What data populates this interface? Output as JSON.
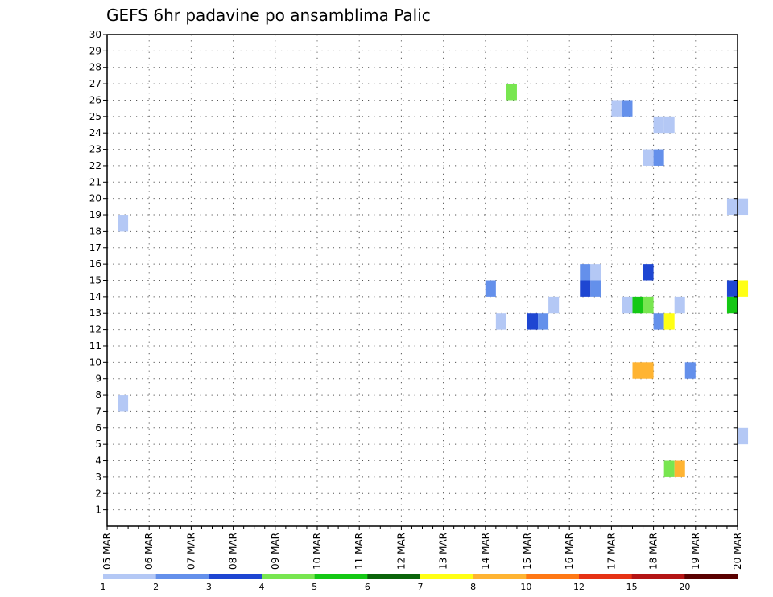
{
  "chart_data": {
    "type": "heatmap",
    "title": "GEFS 6hr padavine po ansamblima Palic",
    "xlabel": "",
    "ylabel": "",
    "x_tick_labels": [
      "05 MAR",
      "06 MAR",
      "07 MAR",
      "08 MAR",
      "09 MAR",
      "10 MAR",
      "11 MAR",
      "12 MAR",
      "13 MAR",
      "14 MAR",
      "15 MAR",
      "16 MAR",
      "17 MAR",
      "18 MAR",
      "19 MAR",
      "20 MAR"
    ],
    "xlim_days": [
      0,
      15
    ],
    "y_tick_labels": [
      1,
      2,
      3,
      4,
      5,
      6,
      7,
      8,
      9,
      10,
      11,
      12,
      13,
      14,
      15,
      16,
      17,
      18,
      19,
      20,
      21,
      22,
      23,
      24,
      25,
      26,
      27,
      28,
      29,
      30
    ],
    "ylim": [
      0,
      30
    ],
    "grid": true,
    "colorbar": {
      "placement": "bottom",
      "levels": [
        1,
        2,
        3,
        4,
        5,
        6,
        7,
        8,
        10,
        12,
        15,
        20
      ],
      "tick_labels": [
        "1",
        "2",
        "3",
        "4",
        "5",
        "6",
        "7",
        "8",
        "10",
        "12",
        "15",
        "20"
      ],
      "colors": [
        "#b4c8f5",
        "#6490eb",
        "#1e46d2",
        "#78e650",
        "#14c814",
        "#0a640a",
        "#ffff14",
        "#ffb432",
        "#ff7814",
        "#e63214",
        "#b41414",
        "#5a0000"
      ]
    },
    "cells": [
      {
        "t": 0.25,
        "m": 19,
        "v": 1
      },
      {
        "t": 0.25,
        "m": 8,
        "v": 1
      },
      {
        "t": 9.5,
        "m": 27,
        "v": 4
      },
      {
        "t": 12.0,
        "m": 26,
        "v": 1
      },
      {
        "t": 12.25,
        "m": 26,
        "v": 2
      },
      {
        "t": 13.0,
        "m": 25,
        "v": 1
      },
      {
        "t": 13.25,
        "m": 25,
        "v": 1
      },
      {
        "t": 12.75,
        "m": 23,
        "v": 1
      },
      {
        "t": 13.0,
        "m": 23,
        "v": 2
      },
      {
        "t": 14.75,
        "m": 20,
        "v": 1
      },
      {
        "t": 15.0,
        "m": 20,
        "v": 1
      },
      {
        "t": 11.25,
        "m": 16,
        "v": 2
      },
      {
        "t": 11.5,
        "m": 16,
        "v": 1
      },
      {
        "t": 12.75,
        "m": 16,
        "v": 3
      },
      {
        "t": 11.25,
        "m": 15,
        "v": 3
      },
      {
        "t": 11.5,
        "m": 15,
        "v": 2
      },
      {
        "t": 9.0,
        "m": 15,
        "v": 2
      },
      {
        "t": 14.75,
        "m": 15,
        "v": 3
      },
      {
        "t": 15.0,
        "m": 15,
        "v": 7
      },
      {
        "t": 10.5,
        "m": 14,
        "v": 1
      },
      {
        "t": 12.25,
        "m": 14,
        "v": 1
      },
      {
        "t": 12.5,
        "m": 14,
        "v": 5
      },
      {
        "t": 12.75,
        "m": 14,
        "v": 4
      },
      {
        "t": 13.5,
        "m": 14,
        "v": 1
      },
      {
        "t": 14.75,
        "m": 14,
        "v": 5
      },
      {
        "t": 9.25,
        "m": 13,
        "v": 1
      },
      {
        "t": 10.0,
        "m": 13,
        "v": 3
      },
      {
        "t": 10.25,
        "m": 13,
        "v": 2
      },
      {
        "t": 13.0,
        "m": 13,
        "v": 2
      },
      {
        "t": 13.25,
        "m": 13,
        "v": 7
      },
      {
        "t": 12.5,
        "m": 10,
        "v": 8
      },
      {
        "t": 12.75,
        "m": 10,
        "v": 8
      },
      {
        "t": 13.75,
        "m": 10,
        "v": 2
      },
      {
        "t": 15.0,
        "m": 6,
        "v": 1
      },
      {
        "t": 13.25,
        "m": 4,
        "v": 4
      },
      {
        "t": 13.5,
        "m": 4,
        "v": 8
      }
    ]
  }
}
